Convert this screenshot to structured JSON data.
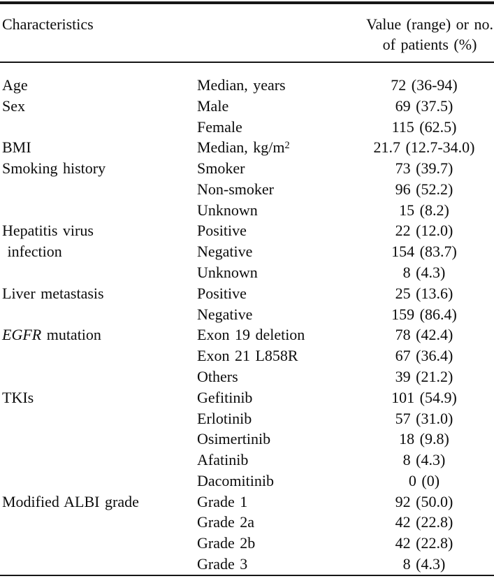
{
  "colors": {
    "background": "#ffffff",
    "text": "#0c0c0c",
    "rule": "#161616"
  },
  "table": {
    "header": {
      "characteristics_label": "Characteristics",
      "value_header_line1": "Value (range) or no.",
      "value_header_line2": "of patients (%)"
    },
    "rows": [
      {
        "c1": [
          {
            "text": "Age"
          }
        ],
        "c2": [
          {
            "text": "Median, years"
          }
        ],
        "c3": "72 (36-94)"
      },
      {
        "c1": [
          {
            "text": "Sex"
          }
        ],
        "c2": [
          {
            "text": "Male"
          }
        ],
        "c3": "69 (37.5)"
      },
      {
        "c1": [],
        "c2": [
          {
            "text": "Female"
          }
        ],
        "c3": "115 (62.5)"
      },
      {
        "c1": [
          {
            "text": "BMI"
          }
        ],
        "c2": [
          {
            "text": "Median, kg/m"
          },
          {
            "text": "2",
            "sup": true
          }
        ],
        "c3": "21.7 (12.7-34.0)"
      },
      {
        "c1": [
          {
            "text": "Smoking history"
          }
        ],
        "c2": [
          {
            "text": "Smoker"
          }
        ],
        "c3": "73 (39.7)"
      },
      {
        "c1": [],
        "c2": [
          {
            "text": "Non-smoker"
          }
        ],
        "c3": "96 (52.2)"
      },
      {
        "c1": [],
        "c2": [
          {
            "text": "Unknown"
          }
        ],
        "c3": "15 (8.2)"
      },
      {
        "c1": [
          {
            "text": "Hepatitis virus"
          }
        ],
        "c2": [
          {
            "text": "Positive"
          }
        ],
        "c3": "22 (12.0)"
      },
      {
        "c1": [
          {
            "text": " infection"
          }
        ],
        "c2": [
          {
            "text": "Negative"
          }
        ],
        "c3": "154 (83.7)"
      },
      {
        "c1": [],
        "c2": [
          {
            "text": "Unknown"
          }
        ],
        "c3": "8 (4.3)"
      },
      {
        "c1": [
          {
            "text": "Liver metastasis"
          }
        ],
        "c2": [
          {
            "text": "Positive"
          }
        ],
        "c3": "25 (13.6)"
      },
      {
        "c1": [],
        "c2": [
          {
            "text": "Negative"
          }
        ],
        "c3": "159 (86.4)"
      },
      {
        "c1": [
          {
            "text": "EGFR",
            "italic": true
          },
          {
            "text": " mutation"
          }
        ],
        "c2": [
          {
            "text": "Exon 19 deletion"
          }
        ],
        "c3": "78 (42.4)"
      },
      {
        "c1": [],
        "c2": [
          {
            "text": "Exon 21 L858R"
          }
        ],
        "c3": "67 (36.4)"
      },
      {
        "c1": [],
        "c2": [
          {
            "text": "Others"
          }
        ],
        "c3": "39 (21.2)"
      },
      {
        "c1": [
          {
            "text": "TKIs"
          }
        ],
        "c2": [
          {
            "text": "Gefitinib"
          }
        ],
        "c3": "101 (54.9)"
      },
      {
        "c1": [],
        "c2": [
          {
            "text": "Erlotinib"
          }
        ],
        "c3": "57 (31.0)"
      },
      {
        "c1": [],
        "c2": [
          {
            "text": "Osimertinib"
          }
        ],
        "c3": "18 (9.8)"
      },
      {
        "c1": [],
        "c2": [
          {
            "text": "Afatinib"
          }
        ],
        "c3": "8 (4.3)"
      },
      {
        "c1": [],
        "c2": [
          {
            "text": "Dacomitinib"
          }
        ],
        "c3": "0 (0)"
      },
      {
        "c1": [
          {
            "text": "Modified ALBI grade"
          }
        ],
        "c2": [
          {
            "text": "Grade 1"
          }
        ],
        "c3": "92 (50.0)"
      },
      {
        "c1": [],
        "c2": [
          {
            "text": "Grade 2a"
          }
        ],
        "c3": "42 (22.8)"
      },
      {
        "c1": [],
        "c2": [
          {
            "text": "Grade 2b"
          }
        ],
        "c3": "42 (22.8)"
      },
      {
        "c1": [],
        "c2": [
          {
            "text": "Grade 3"
          }
        ],
        "c3": "8 (4.3)"
      }
    ]
  }
}
